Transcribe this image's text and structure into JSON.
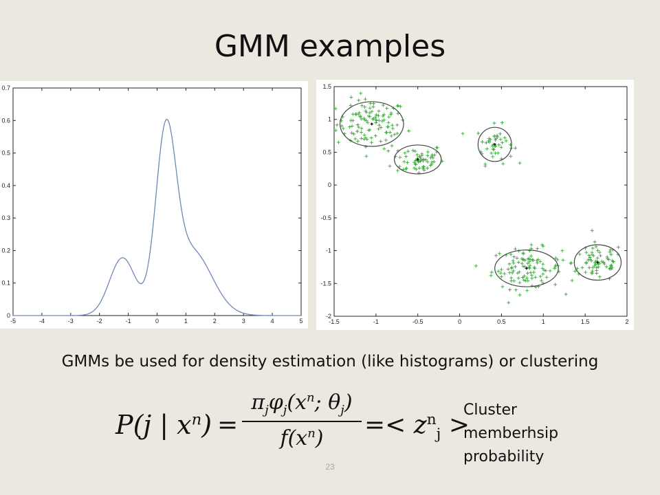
{
  "slide": {
    "title": "GMM examples",
    "caption": "GMMs be used for density estimation (like histograms) or clustering",
    "side_note": "Cluster memberhsip probability",
    "page_number": "23"
  },
  "formula": {
    "lhs": "P(j | x",
    "lhs_sup": "n",
    "lhs_close": ")",
    "eq": "=",
    "numerator": "π",
    "numerator_parts": [
      "j",
      "φ",
      "j",
      "(x",
      "n",
      "; θ",
      "j",
      ")"
    ],
    "denominator": "f(x",
    "denominator_sup": "n",
    "denominator_close": ")",
    "rhs_left": "=<",
    "rhs_var": "z",
    "rhs_sup": "n",
    "rhs_sub": "j",
    "rhs_right": ">"
  },
  "chart_data": [
    {
      "type": "line",
      "xlim": [
        -5,
        5
      ],
      "ylim": [
        0,
        0.7
      ],
      "xticks": [
        -5,
        -4,
        -3,
        -2,
        -1,
        0,
        1,
        2,
        3,
        4,
        5
      ],
      "yticks": [
        0,
        0.1,
        0.2,
        0.3,
        0.4,
        0.5,
        0.6,
        0.7
      ],
      "series": [
        {
          "color": "#6e87b8",
          "components": [
            {
              "weight": 0.2,
              "mean": -1.2,
              "std": 0.45
            },
            {
              "weight": 0.45,
              "mean": 0.3,
              "std": 0.35
            },
            {
              "weight": 0.35,
              "mean": 1.2,
              "std": 0.7
            }
          ]
        }
      ]
    },
    {
      "type": "scatter",
      "xlim": [
        -1.5,
        2
      ],
      "ylim": [
        -2,
        1.5
      ],
      "xticks": [
        -1.5,
        -1,
        -0.5,
        0,
        0.5,
        1,
        1.5,
        2
      ],
      "yticks": [
        -2,
        -1.5,
        -1,
        -0.5,
        0,
        0.5,
        1,
        1.5
      ],
      "point_color": "#3aa63a",
      "ellipse_color": "#444444",
      "clusters": [
        {
          "center": [
            -1.05,
            0.93
          ],
          "rx": 0.38,
          "ry": 0.34,
          "n": 110
        },
        {
          "center": [
            -0.5,
            0.39
          ],
          "rx": 0.28,
          "ry": 0.22,
          "n": 60
        },
        {
          "center": [
            0.42,
            0.62
          ],
          "rx": 0.2,
          "ry": 0.26,
          "n": 45
        },
        {
          "center": [
            0.8,
            -1.27
          ],
          "rx": 0.38,
          "ry": 0.28,
          "n": 110
        },
        {
          "center": [
            1.65,
            -1.18
          ],
          "rx": 0.28,
          "ry": 0.27,
          "n": 70
        }
      ]
    }
  ]
}
